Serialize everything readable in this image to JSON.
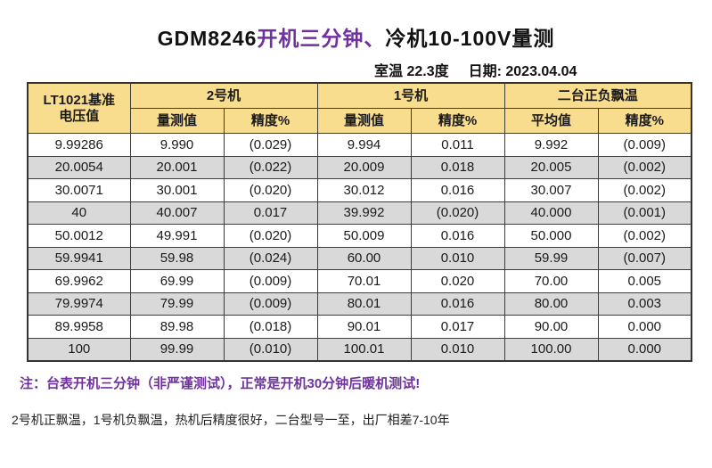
{
  "title": {
    "model": "GDM8246",
    "highlight": "开机三分钟、",
    "rest": "冷机10-100V量测"
  },
  "info": {
    "room_temp": "室温 22.3度",
    "date": "日期: 2023.04.04"
  },
  "table": {
    "header": {
      "ref_line1": "LT1021基准",
      "ref_line2": "电压值",
      "unit2": "2号机",
      "unit1": "1号机",
      "drift": "二台正负飘温",
      "measured": "量测值",
      "accuracy": "精度%",
      "average": "平均值"
    },
    "rows": [
      {
        "cells": [
          "9.99286",
          "9.990",
          "(0.029)",
          "9.994",
          "0.011",
          "9.992",
          "(0.009)"
        ],
        "shaded": false
      },
      {
        "cells": [
          "20.0054",
          "20.001",
          "(0.022)",
          "20.009",
          "0.018",
          "20.005",
          "(0.002)"
        ],
        "shaded": true
      },
      {
        "cells": [
          "30.0071",
          "30.001",
          "(0.020)",
          "30.012",
          "0.016",
          "30.007",
          "(0.002)"
        ],
        "shaded": false
      },
      {
        "cells": [
          "40",
          "40.007",
          "0.017",
          "39.992",
          "(0.020)",
          "40.000",
          "(0.001)"
        ],
        "shaded": true
      },
      {
        "cells": [
          "50.0012",
          "49.991",
          "(0.020)",
          "50.009",
          "0.016",
          "50.000",
          "(0.002)"
        ],
        "shaded": false
      },
      {
        "cells": [
          "59.9941",
          "59.98",
          "(0.024)",
          "60.00",
          "0.010",
          "59.99",
          "(0.007)"
        ],
        "shaded": true
      },
      {
        "cells": [
          "69.9962",
          "69.99",
          "(0.009)",
          "70.01",
          "0.020",
          "70.00",
          "0.005"
        ],
        "shaded": false
      },
      {
        "cells": [
          "79.9974",
          "79.99",
          "(0.009)",
          "80.01",
          "0.016",
          "80.00",
          "0.003"
        ],
        "shaded": true
      },
      {
        "cells": [
          "89.9958",
          "89.98",
          "(0.018)",
          "90.01",
          "0.017",
          "90.00",
          "0.000"
        ],
        "shaded": false
      },
      {
        "cells": [
          "100",
          "99.99",
          "(0.010)",
          "100.01",
          "0.010",
          "100.00",
          "0.000"
        ],
        "shaded": true
      }
    ]
  },
  "notes": {
    "note1": "注：台表开机三分钟（非严谨测试），正常是开机30分钟后暖机测试!",
    "note2": "2号机正飘温，1号机负飘温，热机后精度很好，二台型号一至，出厂相差7-10年"
  },
  "colors": {
    "header_bg": "#F9DD8E",
    "shaded_row_bg": "#D9D9D9",
    "negative_red": "#FF0000",
    "accent_purple": "#7030A0",
    "grid_border": "#3d3d3d"
  }
}
